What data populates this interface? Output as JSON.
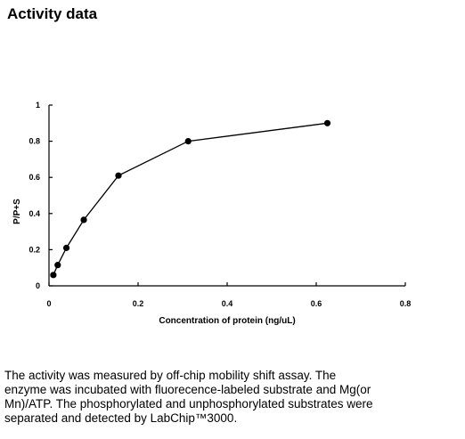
{
  "page": {
    "title": "Activity data",
    "description": "The activity was measured by off-chip mobility shift assay. The\nenzyme was incubated with fluorecence-labeled  substrate and Mg(or\nMn)/ATP. The phosphorylated and unphosphorylated substrates were\nseparated and detected by LabChip™3000."
  },
  "chart_data": {
    "type": "line",
    "title": "",
    "xlabel": "Concentration of protein (ng/uL)",
    "ylabel": "P/P+S",
    "xlim": [
      0,
      0.8
    ],
    "ylim": [
      0,
      1
    ],
    "xticks": [
      "0",
      "0.2",
      "0.4",
      "0.6",
      "0.8"
    ],
    "yticks": [
      "0",
      "0.2",
      "0.4",
      "0.6",
      "0.8",
      "1"
    ],
    "grid": false,
    "series": [
      {
        "x": [
          0.0098,
          0.0195,
          0.0391,
          0.0781,
          0.156,
          0.3125,
          0.625
        ],
        "y": [
          0.06,
          0.115,
          0.21,
          0.365,
          0.61,
          0.8,
          0.9
        ],
        "color": "#000000"
      }
    ]
  }
}
